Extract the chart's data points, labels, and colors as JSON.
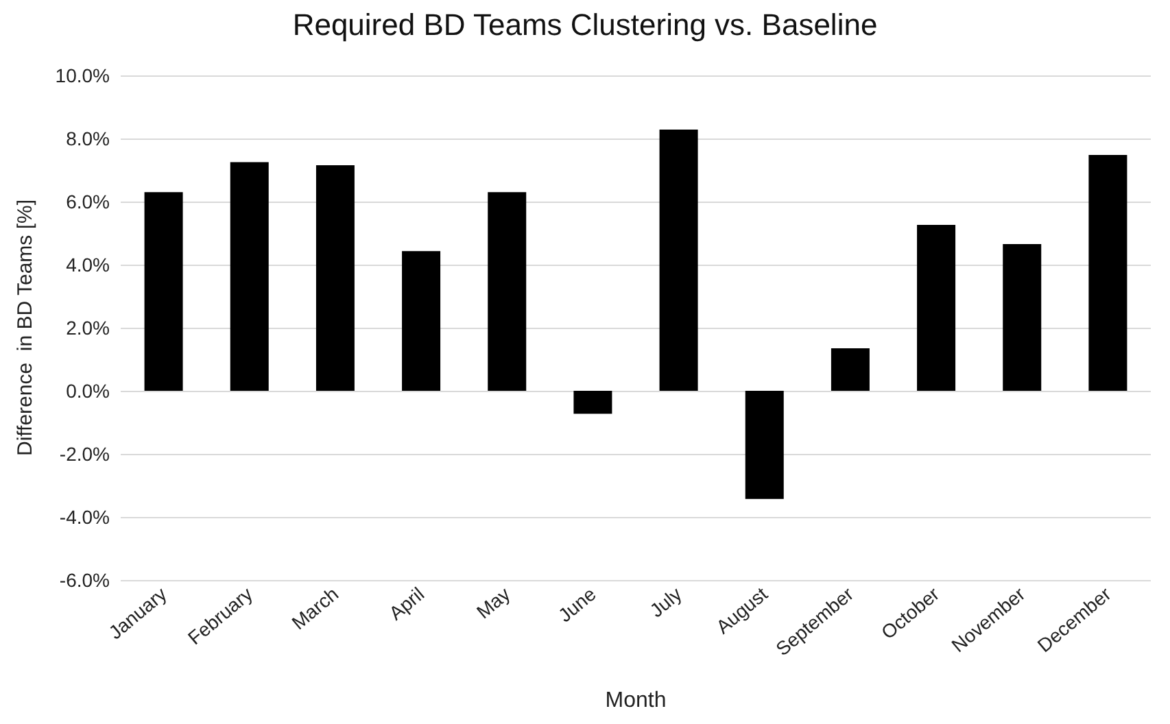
{
  "chart_data": {
    "type": "bar",
    "title": "Required BD Teams Clustering vs. Baseline",
    "xlabel": "Month",
    "ylabel": "Difference  in BD Teams [%]",
    "categories": [
      "January",
      "February",
      "March",
      "April",
      "May",
      "June",
      "July",
      "August",
      "September",
      "October",
      "November",
      "December"
    ],
    "values": [
      6.3,
      7.25,
      7.15,
      4.43,
      6.3,
      -0.73,
      8.28,
      -3.43,
      1.35,
      5.26,
      4.65,
      7.48
    ],
    "color": "#000000",
    "ylim": [
      -6,
      10
    ],
    "yticks": [
      {
        "value": -6,
        "label": "-6.0%"
      },
      {
        "value": -4,
        "label": "-4.0%"
      },
      {
        "value": -2,
        "label": "-2.0%"
      },
      {
        "value": 0,
        "label": "0.0%"
      },
      {
        "value": 2,
        "label": "2.0%"
      },
      {
        "value": 4,
        "label": "4.0%"
      },
      {
        "value": 6,
        "label": "6.0%"
      },
      {
        "value": 8,
        "label": "8.0%"
      },
      {
        "value": 10,
        "label": "10.0%"
      }
    ],
    "grid": "y"
  }
}
